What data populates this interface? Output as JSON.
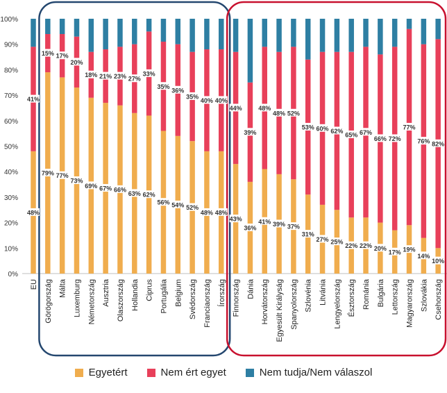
{
  "chart_data": {
    "type": "bar",
    "stacked": true,
    "normalized": true,
    "ylim": [
      0,
      100
    ],
    "y_ticks": [
      "0%",
      "10%",
      "20%",
      "30%",
      "40%",
      "50%",
      "60%",
      "70%",
      "80%",
      "90%",
      "100%"
    ],
    "grid": false,
    "legend_position": "bottom",
    "categories": [
      "EU",
      "Görögország",
      "Málta",
      "Luxemburg",
      "Németország",
      "Ausztria",
      "Olaszország",
      "Hollandia",
      "Ciprus",
      "Portugália",
      "Belgium",
      "Svédország",
      "Franciaország",
      "Írország",
      "Finnország",
      "Dánia",
      "Horvátország",
      "Egyesült Királyság",
      "Spanyolország",
      "Szlovénia",
      "Litvánia",
      "Lengyelország",
      "Észtország",
      "Románia",
      "Bulgária",
      "Lettország",
      "Magyarország",
      "Szlovákia",
      "Csehország"
    ],
    "series": [
      {
        "name": "Egyetért",
        "color": "#f0ad4e",
        "values": [
          48,
          79,
          77,
          73,
          69,
          67,
          66,
          63,
          62,
          56,
          54,
          52,
          48,
          48,
          43,
          36,
          41,
          39,
          37,
          31,
          27,
          25,
          22,
          22,
          20,
          17,
          19,
          14,
          10
        ],
        "labels": [
          "48%",
          "79%",
          "77%",
          "73%",
          "69%",
          "67%",
          "66%",
          "63%",
          "62%",
          "56%",
          "54%",
          "52%",
          "48%",
          "48%",
          "43%",
          "36%",
          "41%",
          "39%",
          "37%",
          "31%",
          "27%",
          "25%",
          "22%",
          "22%",
          "20%",
          "17%",
          "19%",
          "14%",
          "10%"
        ]
      },
      {
        "name": "Nem ért egyet",
        "color": "#e8405a",
        "values": [
          41,
          15,
          17,
          20,
          18,
          21,
          23,
          27,
          33,
          35,
          36,
          35,
          40,
          40,
          44,
          39,
          48,
          48,
          52,
          53,
          60,
          62,
          65,
          67,
          66,
          72,
          77,
          76,
          82
        ],
        "labels": [
          "41%",
          "15%",
          "17%",
          "20%",
          "18%",
          "21%",
          "23%",
          "27%",
          "33%",
          "35%",
          "36%",
          "35%",
          "40%",
          "40%",
          "44%",
          "39%",
          "48%",
          "48%",
          "52%",
          "53%",
          "60%",
          "62%",
          "65%",
          "67%",
          "66%",
          "72%",
          "77%",
          "76%",
          "82%"
        ]
      },
      {
        "name": "Nem tudja/Nem válaszol",
        "color": "#2e7fa3",
        "values": [
          11,
          6,
          6,
          7,
          13,
          12,
          11,
          10,
          5,
          9,
          10,
          13,
          12,
          12,
          13,
          25,
          11,
          13,
          11,
          16,
          13,
          13,
          13,
          11,
          14,
          11,
          4,
          10,
          8
        ]
      }
    ],
    "groups": [
      {
        "color": "#24476f",
        "first": 1,
        "last": 13
      },
      {
        "color": "#c8102e",
        "first": 14,
        "last": 28
      }
    ]
  }
}
